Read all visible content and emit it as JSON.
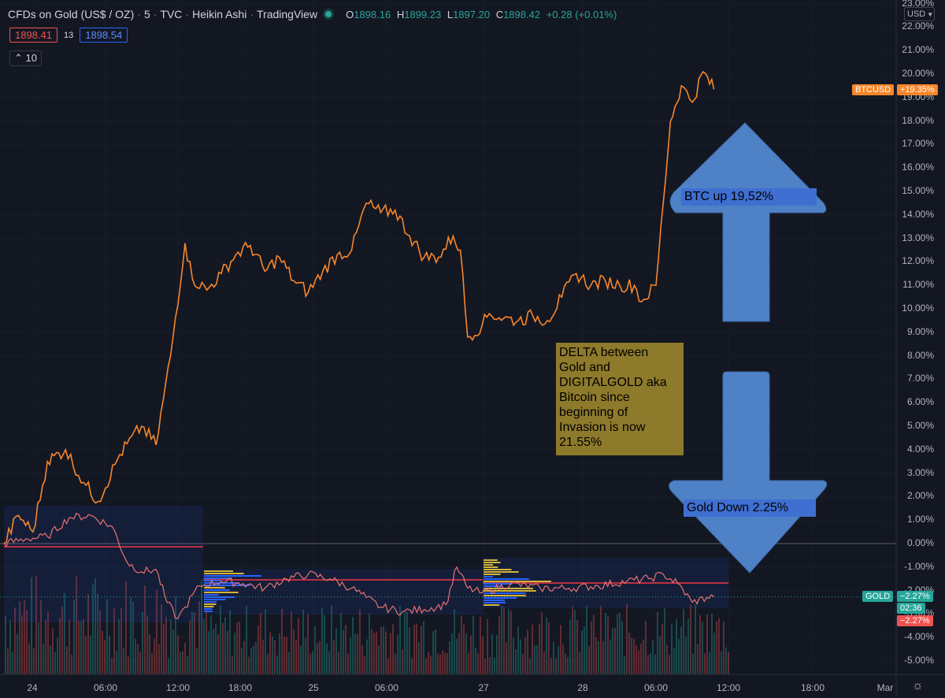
{
  "header": {
    "symbol_title": "CFDs on Gold (US$ / OZ)",
    "interval": "5",
    "exchange": "TVC",
    "chart_style": "Heikin Ashi",
    "source": "TradingView",
    "ohlc": {
      "o_label": "O",
      "o": "1898.16",
      "h_label": "H",
      "h": "1899.23",
      "l_label": "L",
      "l": "1897.20",
      "c_label": "C",
      "c": "1898.42",
      "change": "+0.28 (+0.01%)"
    },
    "bid": "1898.41",
    "spread": "13",
    "ask": "1898.54",
    "collapse_count": "10"
  },
  "currency_selector": "USD",
  "colors": {
    "background": "#131722",
    "btc_line": "#f7862b",
    "gold_up": "#26a69a",
    "gold_down": "#ef5350",
    "arrow_fill": "#4f81c7",
    "volume_profile_blue": "#2962ff",
    "volume_profile_yellow": "#d4b43a",
    "red_line": "#f23645"
  },
  "y_axis": {
    "ticks": [
      "23.00%",
      "22.00%",
      "21.00%",
      "20.00%",
      "19.00%",
      "18.00%",
      "17.00%",
      "16.00%",
      "15.00%",
      "14.00%",
      "13.00%",
      "12.00%",
      "11.00%",
      "10.00%",
      "9.00%",
      "8.00%",
      "7.00%",
      "6.00%",
      "5.00%",
      "4.00%",
      "3.00%",
      "2.00%",
      "1.00%",
      "0.00%",
      "-1.00%",
      "-2.00%",
      "-3.00%",
      "-4.00%",
      "-5.00%"
    ]
  },
  "x_axis": {
    "ticks": [
      "24",
      "06:00",
      "12:00",
      "18:00",
      "25",
      "06:00",
      "27",
      "28",
      "06:00",
      "12:00",
      "18:00",
      "Mar"
    ]
  },
  "axis_labels": {
    "btc_name": "BTCUSD",
    "btc_value": "+19.35%",
    "gold_name": "GOLD",
    "gold_value": "−2.27%",
    "gold_countdown": "02:36",
    "gold_value_red": "−2.27%"
  },
  "annotations": {
    "btc_up": "BTC up 19,52%",
    "gold_down": "Gold Down 2.25%",
    "delta_lines": [
      "DELTA between",
      "Gold and",
      "DIGITALGOLD aka",
      "Bitcoin since",
      "beginning of",
      "Invasion is now",
      "21.55%"
    ]
  },
  "chart_data": {
    "type": "line",
    "y_unit": "%",
    "ylim": [
      -5.5,
      23.0
    ],
    "x_ticks": [
      "24",
      "06:00",
      "12:00",
      "18:00",
      "25",
      "06:00",
      "27",
      "28",
      "06:00",
      "12:00",
      "18:00",
      "Mar"
    ],
    "series": [
      {
        "name": "BTCUSD",
        "points": [
          [
            0,
            0.0
          ],
          [
            0.02,
            1.2
          ],
          [
            0.04,
            0.5
          ],
          [
            0.06,
            3.5
          ],
          [
            0.085,
            4.0
          ],
          [
            0.11,
            2.6
          ],
          [
            0.13,
            1.8
          ],
          [
            0.16,
            3.8
          ],
          [
            0.19,
            5.0
          ],
          [
            0.21,
            4.2
          ],
          [
            0.23,
            8.0
          ],
          [
            0.25,
            12.8
          ],
          [
            0.26,
            11.3
          ],
          [
            0.28,
            10.8
          ],
          [
            0.3,
            11.5
          ],
          [
            0.32,
            12.3
          ],
          [
            0.34,
            12.7
          ],
          [
            0.36,
            11.6
          ],
          [
            0.38,
            12.2
          ],
          [
            0.4,
            11.2
          ],
          [
            0.42,
            10.7
          ],
          [
            0.44,
            11.6
          ],
          [
            0.46,
            12.3
          ],
          [
            0.48,
            12.5
          ],
          [
            0.5,
            14.5
          ],
          [
            0.52,
            14.1
          ],
          [
            0.54,
            14.2
          ],
          [
            0.56,
            13.1
          ],
          [
            0.58,
            12.2
          ],
          [
            0.6,
            12.2
          ],
          [
            0.62,
            13.1
          ],
          [
            0.63,
            12.5
          ],
          [
            0.64,
            8.8
          ],
          [
            0.66,
            9.3
          ],
          [
            0.67,
            9.8
          ],
          [
            0.69,
            9.6
          ],
          [
            0.71,
            9.5
          ],
          [
            0.73,
            9.7
          ],
          [
            0.75,
            9.5
          ],
          [
            0.77,
            10.5
          ],
          [
            0.79,
            11.5
          ],
          [
            0.81,
            11.0
          ],
          [
            0.83,
            11.2
          ],
          [
            0.85,
            11.0
          ],
          [
            0.87,
            11.0
          ],
          [
            0.88,
            10.3
          ],
          [
            0.9,
            11.0
          ],
          [
            0.91,
            14.5
          ],
          [
            0.92,
            18.0
          ],
          [
            0.935,
            19.5
          ],
          [
            0.95,
            18.8
          ],
          [
            0.965,
            20.1
          ],
          [
            0.98,
            19.35
          ]
        ]
      },
      {
        "name": "GOLD",
        "points": [
          [
            0,
            0.0
          ],
          [
            0.03,
            0.2
          ],
          [
            0.06,
            0.3
          ],
          [
            0.09,
            1.1
          ],
          [
            0.12,
            1.2
          ],
          [
            0.15,
            0.7
          ],
          [
            0.17,
            -0.8
          ],
          [
            0.19,
            -1.2
          ],
          [
            0.21,
            -1.1
          ],
          [
            0.225,
            -2.5
          ],
          [
            0.24,
            -3.2
          ],
          [
            0.25,
            -2.7
          ],
          [
            0.27,
            -1.8
          ],
          [
            0.3,
            -1.6
          ],
          [
            0.33,
            -1.7
          ],
          [
            0.36,
            -1.9
          ],
          [
            0.39,
            -1.5
          ],
          [
            0.42,
            -1.3
          ],
          [
            0.45,
            -1.5
          ],
          [
            0.48,
            -1.9
          ],
          [
            0.5,
            -2.3
          ],
          [
            0.52,
            -2.7
          ],
          [
            0.55,
            -2.9
          ],
          [
            0.58,
            -2.8
          ],
          [
            0.61,
            -2.6
          ],
          [
            0.625,
            -1.0
          ],
          [
            0.64,
            -1.9
          ],
          [
            0.66,
            -2.1
          ],
          [
            0.7,
            -1.7
          ],
          [
            0.74,
            -1.9
          ],
          [
            0.78,
            -1.9
          ],
          [
            0.82,
            -1.8
          ],
          [
            0.86,
            -1.6
          ],
          [
            0.89,
            -1.5
          ],
          [
            0.91,
            -1.3
          ],
          [
            0.93,
            -1.7
          ],
          [
            0.95,
            -2.5
          ],
          [
            0.97,
            -2.3
          ],
          [
            0.98,
            -2.27
          ]
        ]
      }
    ]
  }
}
